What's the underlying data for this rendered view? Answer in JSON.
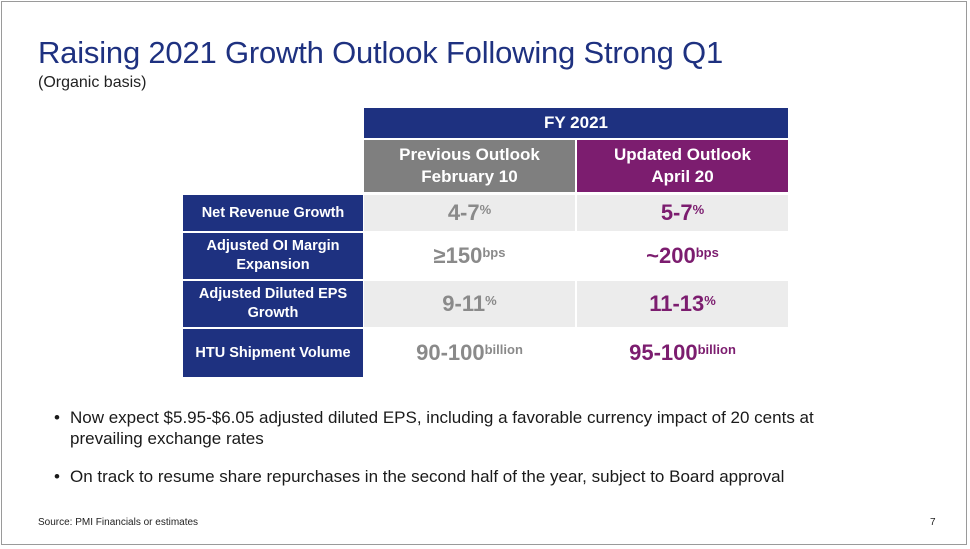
{
  "title": "Raising 2021 Growth Outlook Following Strong Q1",
  "subtitle": "(Organic basis)",
  "table": {
    "fy_header": "FY 2021",
    "prev_header": [
      "Previous Outlook",
      "February 10"
    ],
    "upd_header": [
      "Updated Outlook",
      "April 20"
    ],
    "rows": [
      {
        "label": "Net Revenue Growth",
        "prev": {
          "value": "4-7",
          "unit": "%"
        },
        "upd": {
          "value": "5-7",
          "unit": "%"
        }
      },
      {
        "label": "Adjusted OI Margin Expansion",
        "prev": {
          "value": "≥150",
          "unit": "bps"
        },
        "upd": {
          "value": "~200",
          "unit": "bps"
        }
      },
      {
        "label": "Adjusted Diluted EPS Growth",
        "prev": {
          "value": "9-11",
          "unit": "%"
        },
        "upd": {
          "value": "11-13",
          "unit": "%"
        }
      },
      {
        "label": "HTU Shipment Volume",
        "prev": {
          "value": "90-100",
          "unit": "billion"
        },
        "upd": {
          "value": "95-100",
          "unit": "billion"
        }
      }
    ]
  },
  "bullets": [
    "Now expect $5.95-$6.05 adjusted diluted EPS, including a favorable currency impact of 20 cents at prevailing exchange rates",
    "On track to resume share repurchases in the second half of the year, subject to Board approval"
  ],
  "bullet_char": "•",
  "footer": {
    "source": "Source: PMI Financials or estimates",
    "page": "7"
  },
  "colors": {
    "navy": "#1e3180",
    "purple": "#7c1d6f",
    "gray": "#7f7f7f"
  }
}
